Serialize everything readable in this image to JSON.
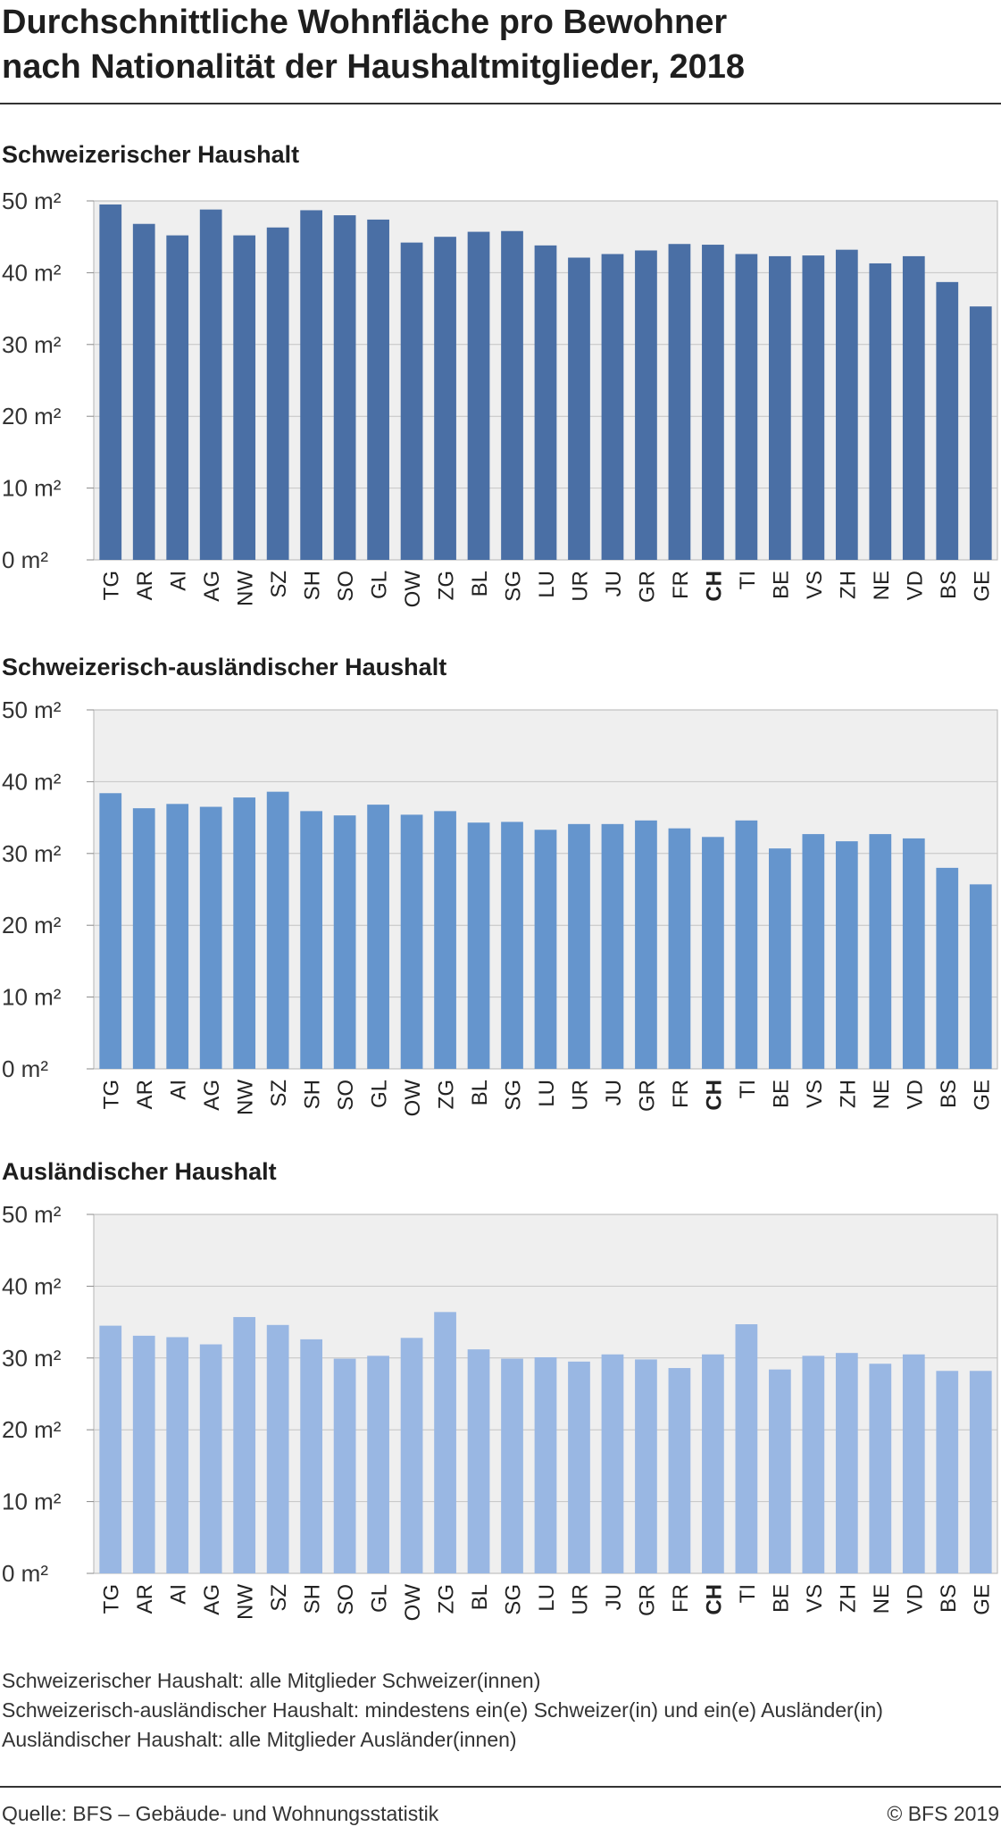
{
  "title_line1": "Durchschnittliche Wohnfläche pro Bewohner",
  "title_line2": "nach Nationalität der Haushaltmitglieder, 2018",
  "chart_data": [
    {
      "type": "bar",
      "title": "Schweizerischer Haushalt",
      "categories": [
        "TG",
        "AR",
        "AI",
        "AG",
        "NW",
        "SZ",
        "SH",
        "SO",
        "GL",
        "OW",
        "ZG",
        "BL",
        "SG",
        "LU",
        "UR",
        "JU",
        "GR",
        "FR",
        "CH",
        "TI",
        "BE",
        "VS",
        "ZH",
        "NE",
        "VD",
        "BS",
        "GE"
      ],
      "values": [
        49.5,
        46.8,
        45.2,
        48.8,
        45.2,
        46.3,
        48.7,
        48.0,
        47.4,
        44.2,
        45.0,
        45.7,
        45.8,
        43.8,
        42.1,
        42.6,
        43.1,
        44.0,
        43.9,
        42.6,
        42.3,
        42.4,
        43.2,
        41.3,
        42.3,
        38.7,
        35.3
      ],
      "ylim": [
        0,
        50
      ],
      "yticks": [
        0,
        10,
        20,
        30,
        40,
        50
      ],
      "unit": " m²",
      "color": "#4a6fa5",
      "highlight": "CH",
      "grid": true
    },
    {
      "type": "bar",
      "title": "Schweizerisch-ausländischer Haushalt",
      "categories": [
        "TG",
        "AR",
        "AI",
        "AG",
        "NW",
        "SZ",
        "SH",
        "SO",
        "GL",
        "OW",
        "ZG",
        "BL",
        "SG",
        "LU",
        "UR",
        "JU",
        "GR",
        "FR",
        "CH",
        "TI",
        "BE",
        "VS",
        "ZH",
        "NE",
        "VD",
        "BS",
        "GE"
      ],
      "values": [
        38.4,
        36.3,
        36.9,
        36.5,
        37.8,
        38.6,
        35.9,
        35.3,
        36.8,
        35.4,
        35.9,
        34.3,
        34.4,
        33.3,
        34.1,
        34.1,
        34.6,
        33.5,
        32.3,
        34.6,
        30.7,
        32.7,
        31.7,
        32.7,
        32.1,
        28.0,
        25.7
      ],
      "ylim": [
        0,
        50
      ],
      "yticks": [
        0,
        10,
        20,
        30,
        40,
        50
      ],
      "unit": " m²",
      "color": "#6595cd",
      "highlight": "CH",
      "grid": true
    },
    {
      "type": "bar",
      "title": "Ausländischer Haushalt",
      "categories": [
        "TG",
        "AR",
        "AI",
        "AG",
        "NW",
        "SZ",
        "SH",
        "SO",
        "GL",
        "OW",
        "ZG",
        "BL",
        "SG",
        "LU",
        "UR",
        "JU",
        "GR",
        "FR",
        "CH",
        "TI",
        "BE",
        "VS",
        "ZH",
        "NE",
        "VD",
        "BS",
        "GE"
      ],
      "values": [
        34.5,
        33.1,
        32.9,
        31.9,
        35.7,
        34.6,
        32.6,
        29.9,
        30.3,
        32.8,
        36.4,
        31.2,
        29.9,
        30.1,
        29.5,
        30.5,
        29.8,
        28.6,
        30.5,
        34.7,
        28.4,
        30.3,
        30.7,
        29.2,
        30.5,
        28.2,
        28.2
      ],
      "ylim": [
        0,
        50
      ],
      "yticks": [
        0,
        10,
        20,
        30,
        40,
        50
      ],
      "unit": " m²",
      "color": "#99b7e3",
      "highlight": "CH",
      "grid": true
    }
  ],
  "notes": [
    "Schweizerischer Haushalt: alle Mitglieder Schweizer(innen)",
    "Schweizerisch-ausländischer Haushalt: mindestens ein(e) Schweizer(in) und ein(e) Ausländer(in)",
    "Ausländischer Haushalt: alle Mitglieder Ausländer(innen)"
  ],
  "source": "Quelle: BFS – Gebäude- und Wohnungsstatistik",
  "copyright": "© BFS 2019"
}
